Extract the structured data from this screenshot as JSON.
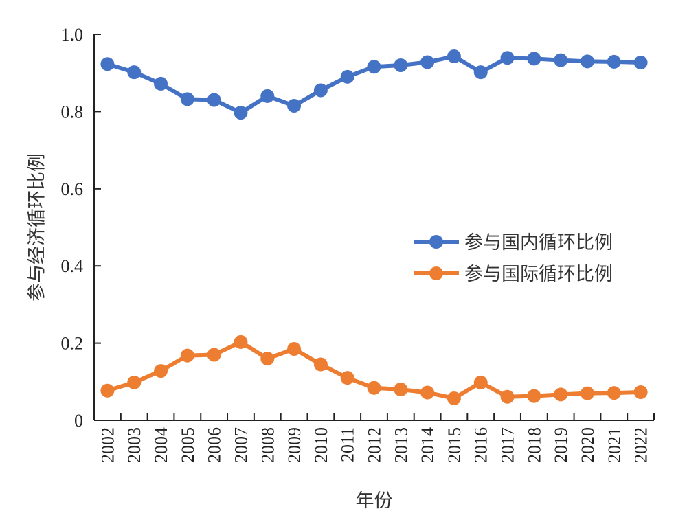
{
  "chart_data": {
    "type": "line",
    "title": "",
    "xlabel": "年份",
    "ylabel": "参与经济循环比例",
    "categories": [
      "2002",
      "2003",
      "2004",
      "2005",
      "2006",
      "2007",
      "2008",
      "2009",
      "2010",
      "2011",
      "2012",
      "2013",
      "2014",
      "2015",
      "2016",
      "2017",
      "2018",
      "2019",
      "2020",
      "2021",
      "2022"
    ],
    "ylim": [
      0,
      1.0
    ],
    "yticks": [
      "0",
      "0.2",
      "0.4",
      "0.6",
      "0.8",
      "1.0"
    ],
    "grid": false,
    "legend_position": "right",
    "series": [
      {
        "name": "参与国内循环比例",
        "color": "#4472C4",
        "values": [
          0.923,
          0.902,
          0.872,
          0.832,
          0.83,
          0.797,
          0.84,
          0.815,
          0.855,
          0.89,
          0.916,
          0.92,
          0.928,
          0.943,
          0.902,
          0.939,
          0.937,
          0.933,
          0.93,
          0.929,
          0.927
        ]
      },
      {
        "name": "参与国际循环比例",
        "color": "#ED7D31",
        "values": [
          0.077,
          0.098,
          0.128,
          0.168,
          0.17,
          0.203,
          0.16,
          0.185,
          0.145,
          0.11,
          0.084,
          0.08,
          0.072,
          0.057,
          0.098,
          0.061,
          0.063,
          0.067,
          0.07,
          0.071,
          0.073
        ]
      }
    ]
  }
}
